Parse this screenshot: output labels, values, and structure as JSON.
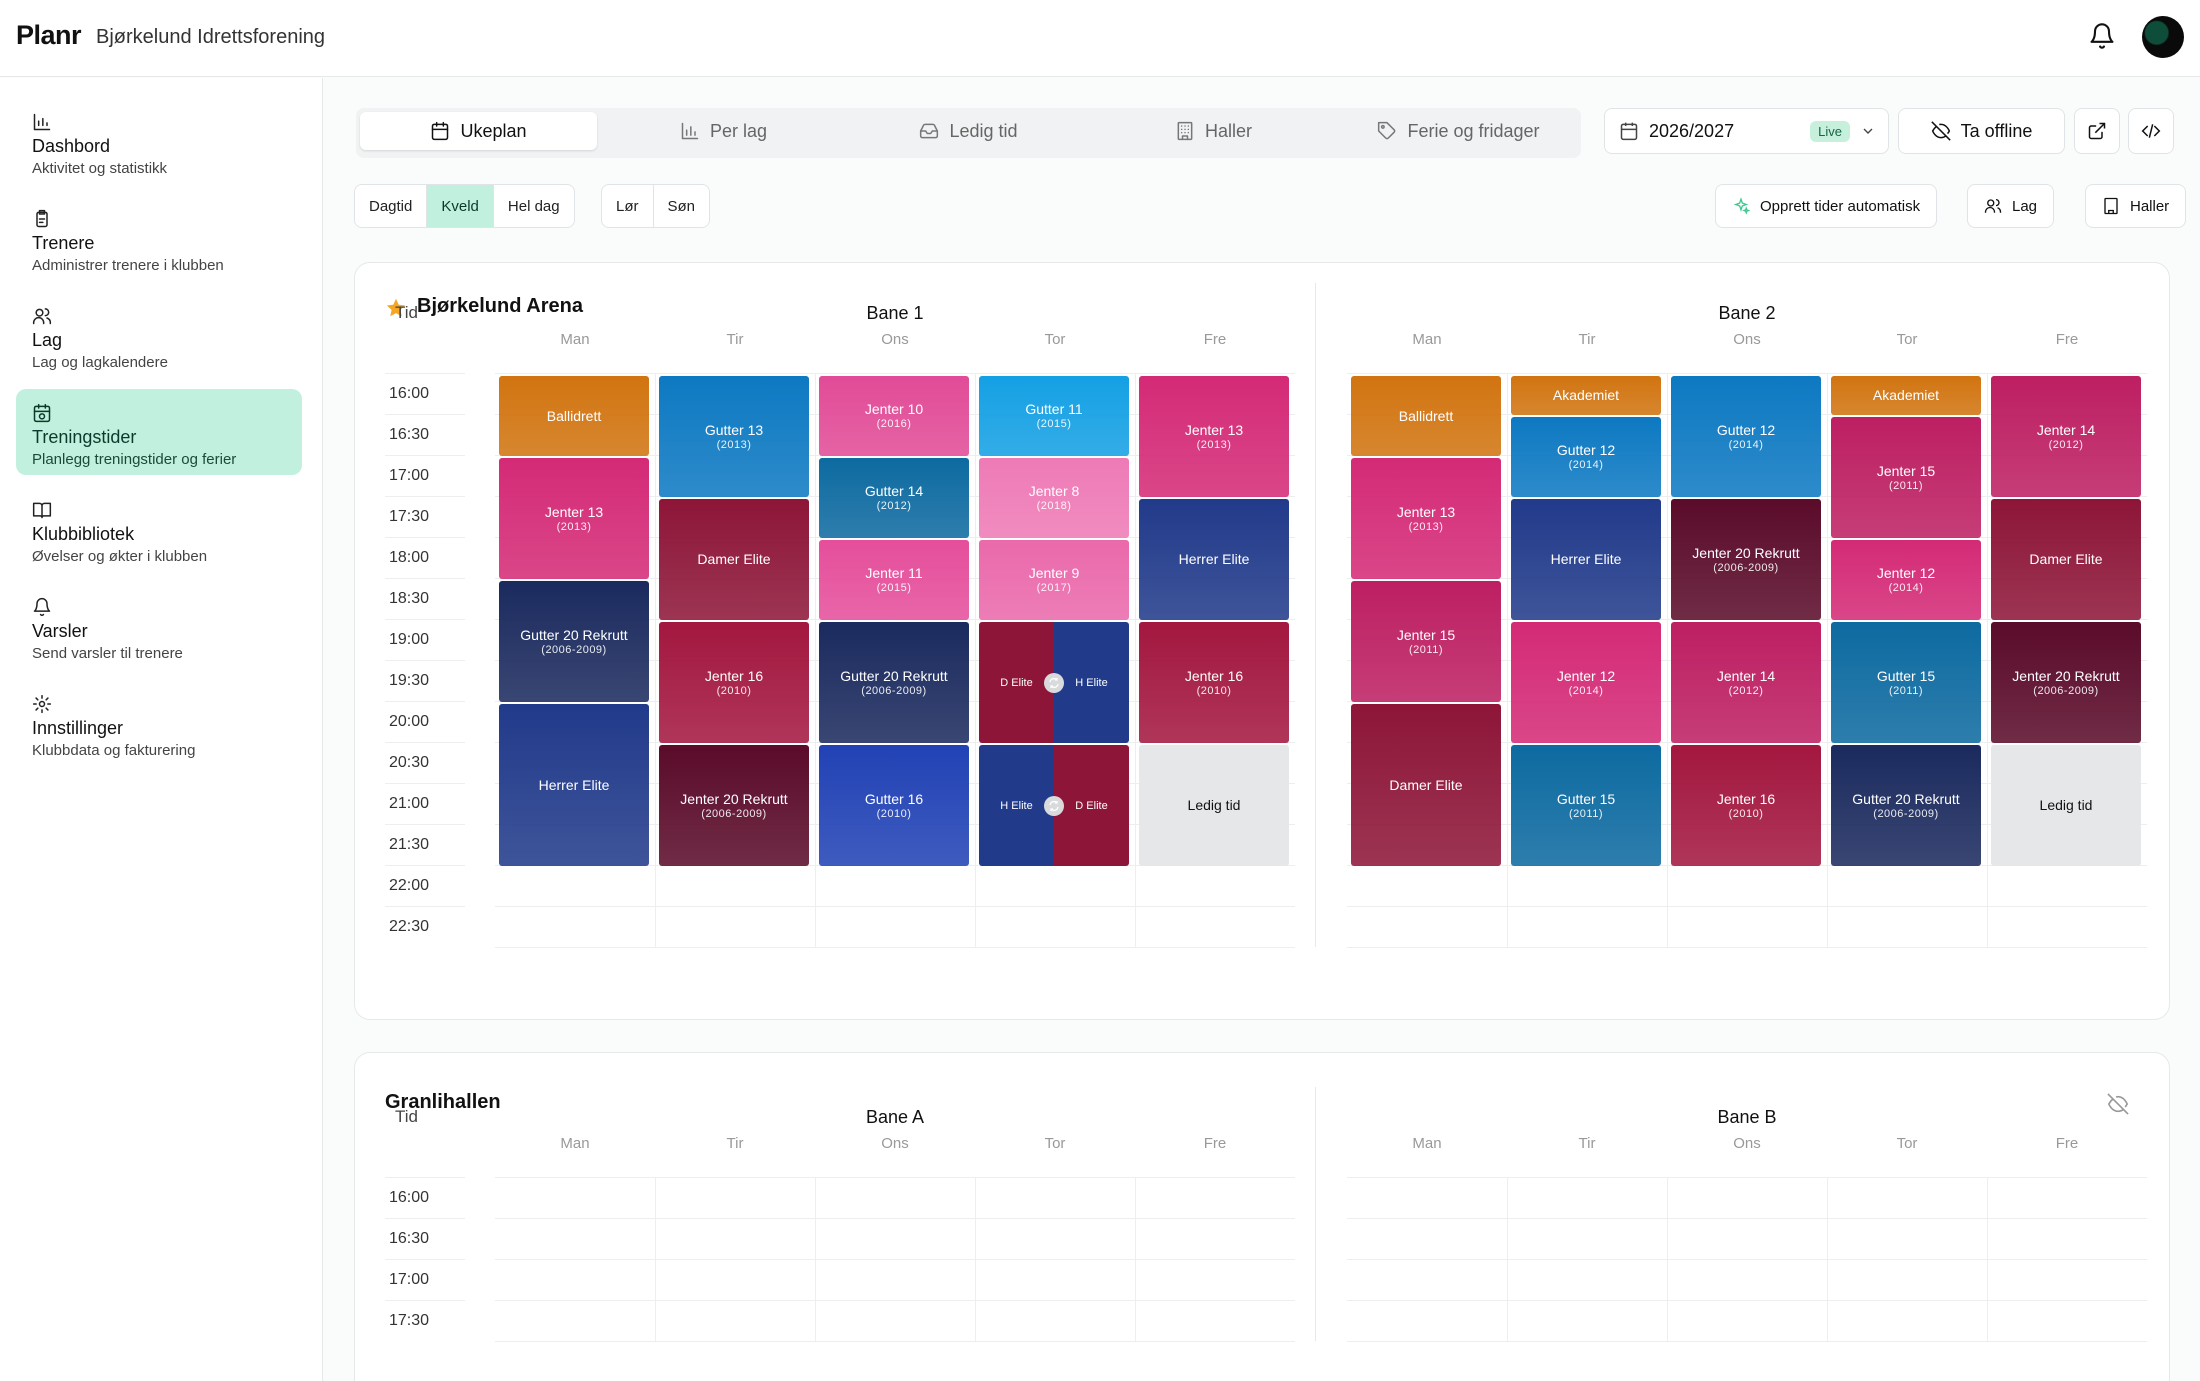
{
  "app": {
    "logo": "Planr",
    "org_name": "Bjørkelund Idrettsforening"
  },
  "sidebar": {
    "items": [
      {
        "label": "Dashbord",
        "desc": "Aktivitet og statistikk",
        "icon": "chart-icon",
        "active": false
      },
      {
        "label": "Trenere",
        "desc": "Administrer trenere i klubben",
        "icon": "clipboard-icon",
        "active": false
      },
      {
        "label": "Lag",
        "desc": "Lag og lagkalendere",
        "icon": "users-icon",
        "active": false
      },
      {
        "label": "Treningstider",
        "desc": "Planlegg treningstider og ferier",
        "icon": "calendar-clock-icon",
        "active": true
      },
      {
        "label": "Klubbibliotek",
        "desc": "Øvelser og økter i klubben",
        "icon": "book-icon",
        "active": false
      },
      {
        "label": "Varsler",
        "desc": "Send varsler til trenere",
        "icon": "bell-icon",
        "active": false
      },
      {
        "label": "Innstillinger",
        "desc": "Klubbdata og fakturering",
        "icon": "gear-icon",
        "active": false
      }
    ]
  },
  "tabs": [
    {
      "label": "Ukeplan",
      "icon": "calendar-icon",
      "active": true
    },
    {
      "label": "Per lag",
      "icon": "bar-chart-icon",
      "active": false
    },
    {
      "label": "Ledig tid",
      "icon": "inbox-icon",
      "active": false
    },
    {
      "label": "Haller",
      "icon": "building-icon",
      "active": false
    },
    {
      "label": "Ferie og fridager",
      "icon": "tag-icon",
      "active": false
    }
  ],
  "toolbar": {
    "season": "2026/2027",
    "live_badge": "Live",
    "offline_label": "Ta offline"
  },
  "filters": {
    "time_range": [
      {
        "label": "Dagtid",
        "on": false
      },
      {
        "label": "Kveld",
        "on": true
      },
      {
        "label": "Hel dag",
        "on": false
      }
    ],
    "weekend": [
      {
        "label": "Lør"
      },
      {
        "label": "Søn"
      }
    ]
  },
  "actions": {
    "auto_label": "Opprett tider automatisk",
    "lag_label": "Lag",
    "haller_label": "Haller"
  },
  "colors": {
    "accent_bg": "#c2f0de",
    "accent_text": "#0b3a2c",
    "star": "#f5a623"
  },
  "halls": [
    {
      "name": "Bjørkelund Arena",
      "favorite": true,
      "hidden": false,
      "time_header": "Tid",
      "times": [
        "16:00",
        "16:30",
        "17:00",
        "17:30",
        "18:00",
        "18:30",
        "19:00",
        "19:30",
        "20:00",
        "20:30",
        "21:00",
        "21:30",
        "22:00",
        "22:30"
      ],
      "courts": [
        {
          "name": "Bane 1",
          "days": [
            "Man",
            "Tir",
            "Ons",
            "Tor",
            "Fre"
          ]
        },
        {
          "name": "Bane 2",
          "days": [
            "Man",
            "Tir",
            "Ons",
            "Tor",
            "Fre"
          ]
        }
      ]
    },
    {
      "name": "Granlihallen",
      "favorite": false,
      "hidden": true,
      "time_header": "Tid",
      "times": [
        "16:00",
        "16:30",
        "17:00",
        "17:30"
      ],
      "courts": [
        {
          "name": "Bane A",
          "days": [
            "Man",
            "Tir",
            "Ons",
            "Tor",
            "Fre"
          ]
        },
        {
          "name": "Bane B",
          "days": [
            "Man",
            "Tir",
            "Ons",
            "Tor",
            "Fre"
          ]
        }
      ]
    }
  ],
  "sessions": [
    {
      "court": 0,
      "day": 0,
      "start": "16:00",
      "end": "17:00",
      "name": "Ballidrett",
      "color": "#d17410"
    },
    {
      "court": 0,
      "day": 0,
      "start": "17:00",
      "end": "18:30",
      "name": "Jenter 13",
      "year": "(2013)",
      "color": "#d42a76"
    },
    {
      "court": 0,
      "day": 0,
      "start": "18:30",
      "end": "20:00",
      "name": "Gutter 20 Rekrutt",
      "year": "(2006-2009)",
      "color": "#1b2a5e"
    },
    {
      "court": 0,
      "day": 0,
      "start": "20:00",
      "end": "22:00",
      "name": "Herrer Elite",
      "color": "#213a8a"
    },
    {
      "court": 0,
      "day": 1,
      "start": "16:00",
      "end": "17:30",
      "name": "Gutter 13",
      "year": "(2013)",
      "color": "#0d79c2"
    },
    {
      "court": 0,
      "day": 1,
      "start": "17:30",
      "end": "19:00",
      "name": "Damer Elite",
      "color": "#8d1538"
    },
    {
      "court": 0,
      "day": 1,
      "start": "19:00",
      "end": "20:30",
      "name": "Jenter 16",
      "year": "(2010)",
      "color": "#a3173f"
    },
    {
      "court": 0,
      "day": 1,
      "start": "20:30",
      "end": "22:00",
      "name": "Jenter 20 Rekrutt",
      "year": "(2006-2009)",
      "color": "#5a0b29"
    },
    {
      "court": 0,
      "day": 2,
      "start": "16:00",
      "end": "17:00",
      "name": "Jenter 10",
      "year": "(2016)",
      "color": "#e14b97"
    },
    {
      "court": 0,
      "day": 2,
      "start": "17:00",
      "end": "18:00",
      "name": "Gutter 14",
      "year": "(2012)",
      "color": "#0d6aa0"
    },
    {
      "court": 0,
      "day": 2,
      "start": "18:00",
      "end": "19:00",
      "name": "Jenter 11",
      "year": "(2015)",
      "color": "#e54e9b"
    },
    {
      "court": 0,
      "day": 2,
      "start": "19:00",
      "end": "20:30",
      "name": "Gutter 20 Rekrutt",
      "year": "(2006-2009)",
      "color": "#1b2a5e"
    },
    {
      "court": 0,
      "day": 2,
      "start": "20:30",
      "end": "22:00",
      "name": "Gutter 16",
      "year": "(2010)",
      "color": "#2142b5"
    },
    {
      "court": 0,
      "day": 3,
      "start": "16:00",
      "end": "17:00",
      "name": "Gutter 11",
      "year": "(2015)",
      "color": "#14a0e4"
    },
    {
      "court": 0,
      "day": 3,
      "start": "17:00",
      "end": "18:00",
      "name": "Jenter 8",
      "year": "(2018)",
      "color": "#ee7ab6"
    },
    {
      "court": 0,
      "day": 3,
      "start": "18:00",
      "end": "19:00",
      "name": "Jenter 9",
      "year": "(2017)",
      "color": "#ea69ab"
    },
    {
      "court": 0,
      "day": 4,
      "start": "16:00",
      "end": "17:30",
      "name": "Jenter 13",
      "year": "(2013)",
      "color": "#d42a76"
    },
    {
      "court": 0,
      "day": 4,
      "start": "17:30",
      "end": "19:00",
      "name": "Herrer Elite",
      "color": "#213a8a"
    },
    {
      "court": 0,
      "day": 4,
      "start": "19:00",
      "end": "20:30",
      "name": "Jenter 16",
      "year": "(2010)",
      "color": "#a3173f"
    },
    {
      "court": 0,
      "day": 4,
      "start": "20:30",
      "end": "22:00",
      "name": "Ledig tid",
      "color": "#e6e7e9",
      "gray": true
    },
    {
      "court": 1,
      "day": 0,
      "start": "16:00",
      "end": "17:00",
      "name": "Ballidrett",
      "color": "#d17410"
    },
    {
      "court": 1,
      "day": 0,
      "start": "17:00",
      "end": "18:30",
      "name": "Jenter 13",
      "year": "(2013)",
      "color": "#d42a76"
    },
    {
      "court": 1,
      "day": 0,
      "start": "18:30",
      "end": "20:00",
      "name": "Jenter 15",
      "year": "(2011)",
      "color": "#bd1f62"
    },
    {
      "court": 1,
      "day": 0,
      "start": "20:00",
      "end": "22:00",
      "name": "Damer Elite",
      "color": "#8d1538"
    },
    {
      "court": 1,
      "day": 1,
      "start": "16:00",
      "end": "16:30",
      "name": "Akademiet",
      "color": "#d17410"
    },
    {
      "court": 1,
      "day": 1,
      "start": "16:30",
      "end": "17:30",
      "name": "Gutter 12",
      "year": "(2014)",
      "color": "#0d79c2"
    },
    {
      "court": 1,
      "day": 1,
      "start": "17:30",
      "end": "19:00",
      "name": "Herrer Elite",
      "color": "#213a8a"
    },
    {
      "court": 1,
      "day": 1,
      "start": "19:00",
      "end": "20:30",
      "name": "Jenter 12",
      "year": "(2014)",
      "color": "#d42a76"
    },
    {
      "court": 1,
      "day": 1,
      "start": "20:30",
      "end": "22:00",
      "name": "Gutter 15",
      "year": "(2011)",
      "color": "#0d6aa0"
    },
    {
      "court": 1,
      "day": 2,
      "start": "16:00",
      "end": "17:30",
      "name": "Gutter 12",
      "year": "(2014)",
      "color": "#0d79c2"
    },
    {
      "court": 1,
      "day": 2,
      "start": "17:30",
      "end": "19:00",
      "name": "Jenter 20 Rekrutt",
      "year": "(2006-2009)",
      "color": "#5a0b29"
    },
    {
      "court": 1,
      "day": 2,
      "start": "19:00",
      "end": "20:30",
      "name": "Jenter 14",
      "year": "(2012)",
      "color": "#bd1f62"
    },
    {
      "court": 1,
      "day": 2,
      "start": "20:30",
      "end": "22:00",
      "name": "Jenter 16",
      "year": "(2010)",
      "color": "#a3173f"
    },
    {
      "court": 1,
      "day": 3,
      "start": "16:00",
      "end": "16:30",
      "name": "Akademiet",
      "color": "#d17410"
    },
    {
      "court": 1,
      "day": 3,
      "start": "16:30",
      "end": "18:00",
      "name": "Jenter 15",
      "year": "(2011)",
      "color": "#bd1f62"
    },
    {
      "court": 1,
      "day": 3,
      "start": "18:00",
      "end": "19:00",
      "name": "Jenter 12",
      "year": "(2014)",
      "color": "#d42a76"
    },
    {
      "court": 1,
      "day": 3,
      "start": "19:00",
      "end": "20:30",
      "name": "Gutter 15",
      "year": "(2011)",
      "color": "#0d6aa0"
    },
    {
      "court": 1,
      "day": 3,
      "start": "20:30",
      "end": "22:00",
      "name": "Gutter 20 Rekrutt",
      "year": "(2006-2009)",
      "color": "#1b2a5e"
    },
    {
      "court": 1,
      "day": 4,
      "start": "16:00",
      "end": "17:30",
      "name": "Jenter 14",
      "year": "(2012)",
      "color": "#bd1f62"
    },
    {
      "court": 1,
      "day": 4,
      "start": "17:30",
      "end": "19:00",
      "name": "Damer Elite",
      "color": "#8d1538"
    },
    {
      "court": 1,
      "day": 4,
      "start": "19:00",
      "end": "20:30",
      "name": "Jenter 20 Rekrutt",
      "year": "(2006-2009)",
      "color": "#5a0b29"
    },
    {
      "court": 1,
      "day": 4,
      "start": "20:30",
      "end": "22:00",
      "name": "Ledig tid",
      "color": "#e6e7e9",
      "gray": true
    }
  ],
  "shared_sessions": [
    {
      "court": 0,
      "day": 3,
      "start": "19:00",
      "end": "20:30",
      "left": {
        "name": "D Elite",
        "color": "#8d1538"
      },
      "right": {
        "name": "H Elite",
        "color": "#213a8a"
      }
    },
    {
      "court": 0,
      "day": 3,
      "start": "20:30",
      "end": "22:00",
      "left": {
        "name": "H Elite",
        "color": "#213a8a"
      },
      "right": {
        "name": "D Elite",
        "color": "#8d1538"
      }
    }
  ]
}
